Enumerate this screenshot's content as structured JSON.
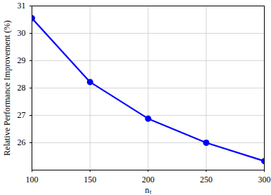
{
  "chart_data": {
    "type": "line",
    "x_label": "nₜ",
    "y_label": "Relative Performance Improvement (%)",
    "x": [
      100,
      150,
      200,
      250,
      300
    ],
    "values": [
      30.55,
      28.22,
      26.88,
      26.0,
      25.33
    ],
    "color": "#0000ff",
    "marker": "circle",
    "xlim": [
      100,
      300
    ],
    "xticks": [
      100,
      150,
      200,
      250,
      300
    ],
    "ylim": [
      25,
      31
    ],
    "yticks": [
      26,
      27,
      28,
      29,
      30,
      31
    ],
    "grid": true
  }
}
